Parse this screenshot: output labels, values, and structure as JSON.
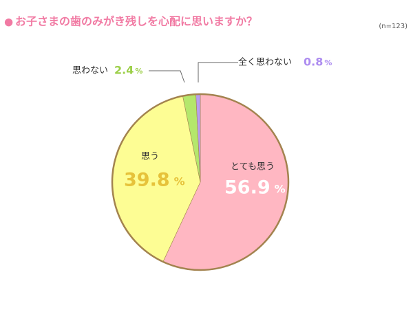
{
  "chart_data": {
    "type": "pie",
    "title": "お子さまの歯のみがき残しを心配に思いますか？",
    "bullet": "●",
    "subtitle": "(n=123)",
    "unit": "%",
    "categories": [
      "とても思う",
      "思う",
      "思わない",
      "全く思わない"
    ],
    "values": [
      56.9,
      39.8,
      2.4,
      0.8
    ],
    "colors": [
      "#ffb7c2",
      "#fdfd94",
      "#b4e76c",
      "#b79ff0"
    ],
    "label_colors": [
      "#ffffff",
      "#e6c23a",
      "#9ccf48",
      "#ad8cf0"
    ],
    "title_color": "#f17aa3",
    "edge_color": "#a3834f"
  }
}
